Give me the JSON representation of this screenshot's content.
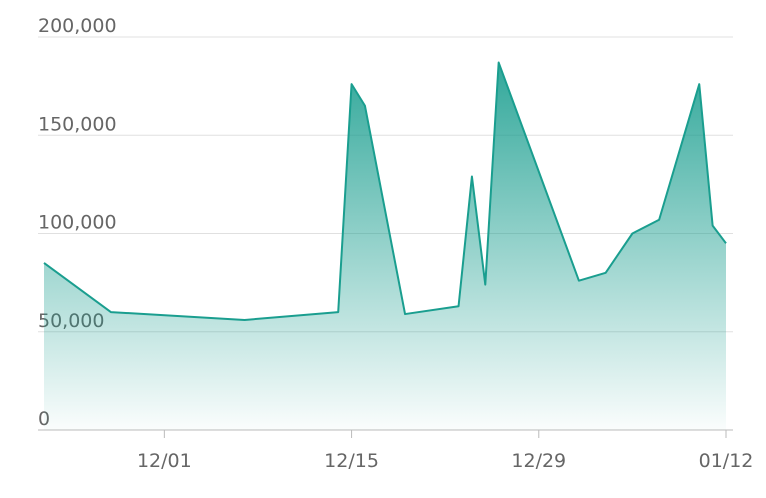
{
  "chart_data": {
    "type": "area",
    "x": [
      "11/22",
      "11/27",
      "12/07",
      "12/14",
      "12/15",
      "12/16",
      "12/19",
      "12/23",
      "12/24",
      "12/25",
      "12/26",
      "01/01",
      "01/03",
      "01/05",
      "01/07",
      "01/10",
      "01/11",
      "01/12"
    ],
    "series": [
      {
        "color": "#1a9e8f",
        "values": [
          85000,
          60000,
          56000,
          60000,
          176000,
          165000,
          59000,
          63000,
          129000,
          74000,
          187000,
          76000,
          80000,
          100000,
          107000,
          176000,
          104000,
          95000
        ]
      }
    ],
    "xlim": [
      "11/22",
      "01/12"
    ],
    "xticks": [
      "12/01",
      "12/15",
      "12/29",
      "01/12"
    ],
    "ylim": [
      0,
      200000
    ],
    "yticks": [
      0,
      {
        "value": 50000,
        "label": "50,000"
      },
      {
        "value": 100000,
        "label": "100,000"
      },
      {
        "value": 150000,
        "label": "150,000"
      },
      {
        "value": 200000,
        "label": "200,000"
      }
    ],
    "grid": true
  }
}
